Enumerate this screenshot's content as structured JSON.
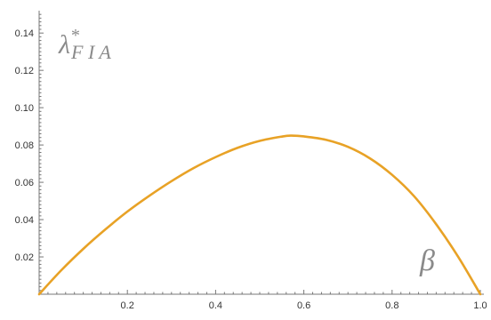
{
  "chart_data": {
    "type": "line",
    "title": "",
    "ylabel": {
      "base": "λ",
      "superscript": "*",
      "subscript": "F I A"
    },
    "xlabel": "β",
    "xlim": [
      0,
      1
    ],
    "ylim": [
      0,
      0.15
    ],
    "x_ticks": [
      {
        "value": 0.2,
        "label": "0.2"
      },
      {
        "value": 0.4,
        "label": "0.4"
      },
      {
        "value": 0.6,
        "label": "0.6"
      },
      {
        "value": 0.8,
        "label": "0.8"
      },
      {
        "value": 1.0,
        "label": "1.0"
      }
    ],
    "y_ticks": [
      {
        "value": 0.02,
        "label": "0.02"
      },
      {
        "value": 0.04,
        "label": "0.04"
      },
      {
        "value": 0.06,
        "label": "0.06"
      },
      {
        "value": 0.08,
        "label": "0.08"
      },
      {
        "value": 0.1,
        "label": "0.10"
      },
      {
        "value": 0.12,
        "label": "0.12"
      },
      {
        "value": 0.14,
        "label": "0.14"
      }
    ],
    "grid": false,
    "series": [
      {
        "color": "#e8a226",
        "x": [
          0,
          0.05,
          0.1,
          0.15,
          0.2,
          0.25,
          0.3,
          0.35,
          0.4,
          0.45,
          0.5,
          0.55,
          0.57,
          0.6,
          0.65,
          0.7,
          0.75,
          0.8,
          0.85,
          0.9,
          0.95,
          1.0
        ],
        "y": [
          0,
          0.0128,
          0.0243,
          0.0347,
          0.0443,
          0.0528,
          0.0606,
          0.0676,
          0.0735,
          0.0785,
          0.0822,
          0.0845,
          0.085,
          0.0846,
          0.0828,
          0.079,
          0.0728,
          0.064,
          0.0525,
          0.0375,
          0.02,
          0
        ]
      }
    ]
  }
}
